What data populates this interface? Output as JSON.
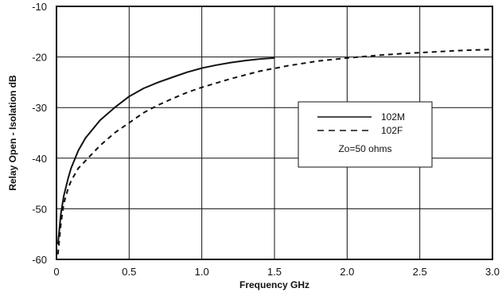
{
  "chart_data": {
    "type": "line",
    "title": "",
    "xlabel": "Frequency GHz",
    "ylabel": "Relay Open - Isolation dB",
    "xlim": [
      0,
      3.0
    ],
    "ylim": [
      -60,
      -10
    ],
    "xticks": [
      0,
      0.5,
      1.0,
      1.5,
      2.0,
      2.5,
      3.0
    ],
    "xtick_labels": [
      "0",
      "0.5",
      "1.0",
      "1.5",
      "2.0",
      "2.5",
      "3.0"
    ],
    "yticks": [
      -60,
      -50,
      -40,
      -30,
      -20,
      -10
    ],
    "ytick_labels": [
      "-60",
      "-50",
      "-40",
      "-30",
      "-20",
      "-10"
    ],
    "grid": true,
    "legend_position": "center-right",
    "series": [
      {
        "name": "102M",
        "style": "solid",
        "color": "#111111",
        "x": [
          0.01,
          0.03,
          0.05,
          0.08,
          0.1,
          0.15,
          0.2,
          0.3,
          0.4,
          0.5,
          0.6,
          0.7,
          0.8,
          0.9,
          1.0,
          1.1,
          1.2,
          1.3,
          1.4,
          1.5
        ],
        "y": [
          -57,
          -51,
          -47.5,
          -44,
          -42,
          -38.5,
          -36,
          -32.5,
          -30,
          -27.8,
          -26.2,
          -25,
          -24,
          -23,
          -22.2,
          -21.6,
          -21.1,
          -20.7,
          -20.4,
          -20.2
        ]
      },
      {
        "name": "102F",
        "style": "dashed",
        "color": "#111111",
        "x": [
          0.01,
          0.03,
          0.05,
          0.08,
          0.1,
          0.15,
          0.2,
          0.3,
          0.4,
          0.5,
          0.6,
          0.7,
          0.8,
          0.9,
          1.0,
          1.2,
          1.4,
          1.6,
          1.8,
          2.0,
          2.2,
          2.4,
          2.6,
          2.8,
          3.0
        ],
        "y": [
          -59,
          -53,
          -49,
          -46,
          -44.5,
          -42,
          -40.5,
          -37.5,
          -35,
          -33,
          -31,
          -29.5,
          -28.2,
          -27,
          -26,
          -24.3,
          -22.8,
          -21.7,
          -20.8,
          -20.2,
          -19.7,
          -19.3,
          -19,
          -18.7,
          -18.5
        ]
      }
    ],
    "legend": {
      "entries": [
        {
          "label": "102M",
          "style": "solid"
        },
        {
          "label": "102F",
          "style": "dashed"
        }
      ],
      "note": "Zo=50 ohms"
    }
  }
}
